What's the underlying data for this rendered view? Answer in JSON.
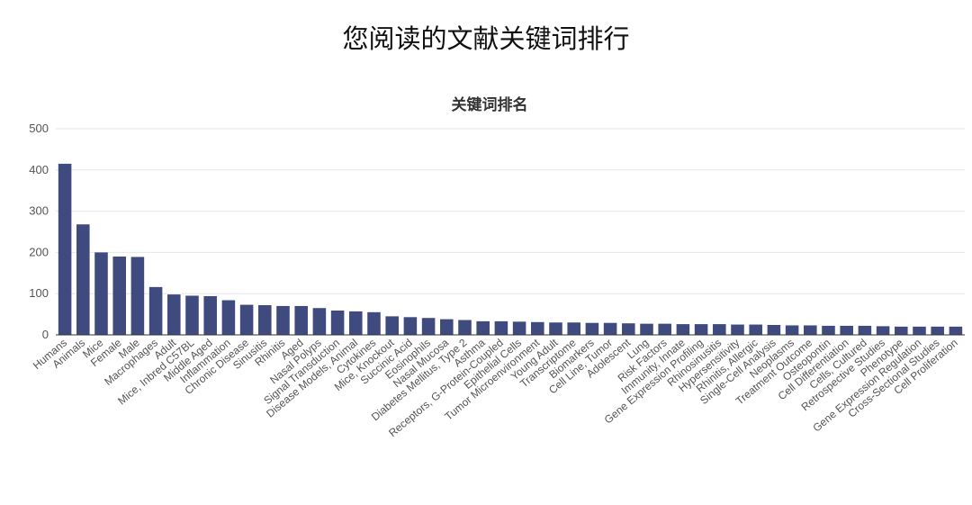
{
  "page": {
    "title": "您阅读的文献关键词排行"
  },
  "chart_data": {
    "type": "bar",
    "title": "关键词排名",
    "xlabel": "",
    "ylabel": "",
    "ylim": [
      0,
      500
    ],
    "yticks": [
      0,
      100,
      200,
      300,
      400,
      500
    ],
    "grid": true,
    "bar_color": "#3f4a7e",
    "categories": [
      "Humans",
      "Animals",
      "Mice",
      "Female",
      "Male",
      "Macrophages",
      "Adult",
      "Mice, Inbred C57BL",
      "Middle Aged",
      "Inflammation",
      "Chronic Disease",
      "Sinusitis",
      "Rhinitis",
      "Aged",
      "Nasal Polyps",
      "Signal Transduction",
      "Disease Models, Animal",
      "Cytokines",
      "Mice, Knockout",
      "Succinic Acid",
      "Eosinophils",
      "Nasal Mucosa",
      "Diabetes Mellitus, Type 2",
      "Asthma",
      "Receptors, G-Protein-Coupled",
      "Epithelial Cells",
      "Tumor Microenvironment",
      "Young Adult",
      "Transcriptome",
      "Biomarkers",
      "Cell Line, Tumor",
      "Adolescent",
      "Lung",
      "Risk Factors",
      "Immunity, Innate",
      "Gene Expression Profiling",
      "Rhinosinusitis",
      "Hypersensitivity",
      "Rhinitis, Allergic",
      "Single-Cell Analysis",
      "Neoplasms",
      "Treatment Outcome",
      "Osteopontin",
      "Cell Differentiation",
      "Cells, Cultured",
      "Retrospective Studies",
      "Phenotype",
      "Gene Expression Regulation",
      "Cross-Sectional Studies",
      "Cell Proliferation"
    ],
    "values": [
      415,
      268,
      200,
      190,
      189,
      116,
      98,
      95,
      94,
      84,
      73,
      72,
      70,
      70,
      65,
      59,
      57,
      55,
      45,
      43,
      41,
      38,
      36,
      33,
      33,
      32,
      31,
      30,
      30,
      29,
      29,
      28,
      27,
      27,
      26,
      26,
      26,
      25,
      25,
      24,
      23,
      23,
      22,
      22,
      22,
      21,
      20,
      20,
      20,
      20
    ]
  }
}
